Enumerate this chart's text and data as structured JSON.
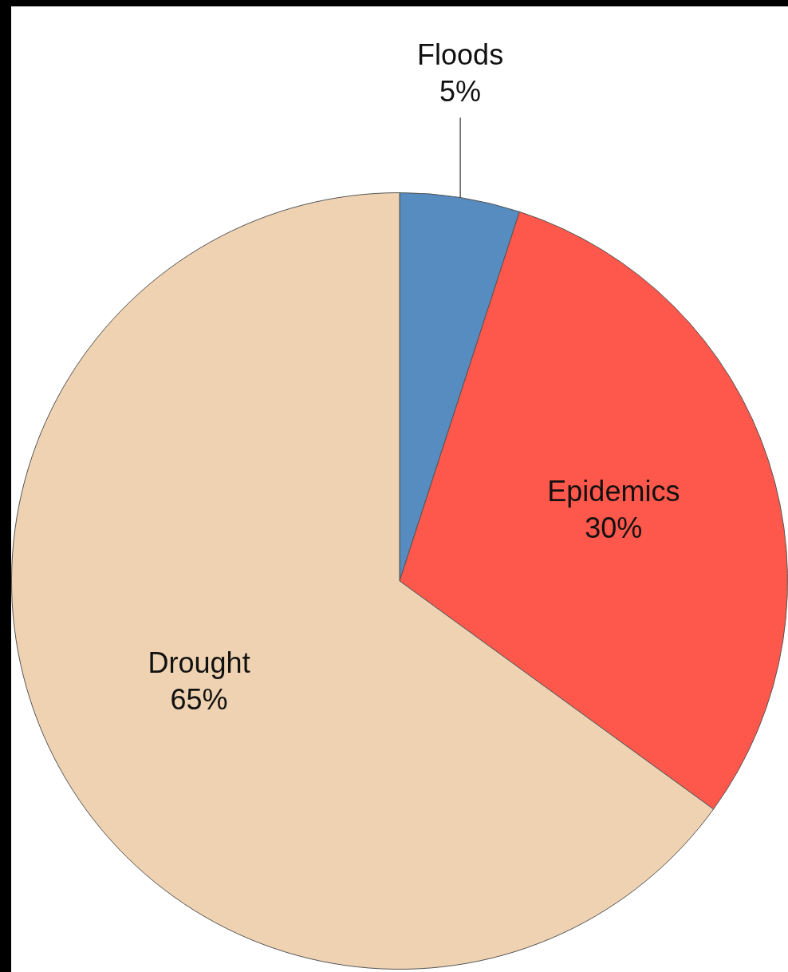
{
  "chart_data": {
    "type": "pie",
    "categories": [
      "Floods",
      "Epidemics",
      "Drought"
    ],
    "values": [
      5,
      30,
      65
    ],
    "colors": [
      "#568cc0",
      "#fe574b",
      "#eed2b2"
    ],
    "value_labels": [
      "5%",
      "30%",
      "65%"
    ],
    "legend": false
  }
}
